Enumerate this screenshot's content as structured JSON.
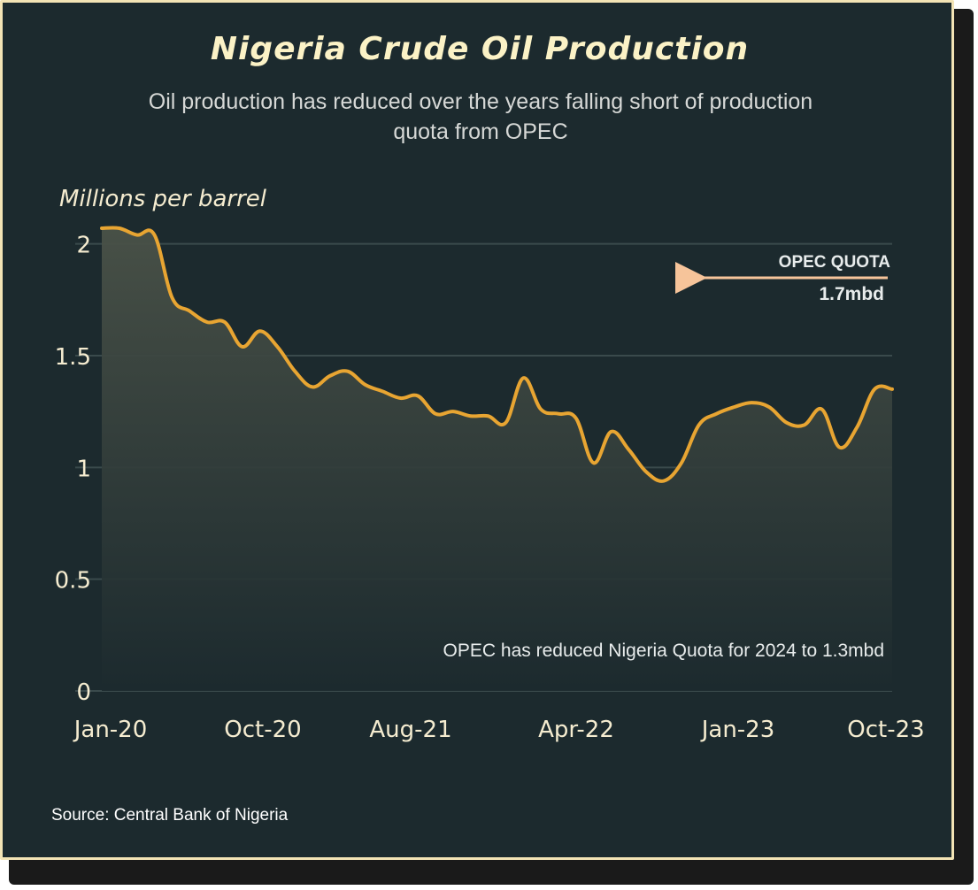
{
  "title": "Nigeria Crude Oil Production",
  "subtitle": "Oil production has reduced over the years falling short of production quota from OPEC",
  "source": "Source: Central Bank of Nigeria",
  "colors": {
    "background": "#1c2a2e",
    "line": "#e8a532",
    "gridline": "#3a4a4c",
    "arrow": "#f6c49a",
    "border": "#f3e4b5"
  },
  "chart_data": {
    "type": "area",
    "ylabel": "Millions per barrel",
    "xlabel": "",
    "ylim": [
      0,
      2.07
    ],
    "yticks": [
      0,
      0.5,
      1,
      1.5,
      2
    ],
    "ytick_labels": [
      "0",
      "0.5",
      "1",
      "1.5",
      "2"
    ],
    "xtick_labels": [
      "Jan-20",
      "Oct-20",
      "Aug-21",
      "Apr-22",
      "Jan-23",
      "Oct-23"
    ],
    "xtick_index": [
      0,
      9,
      19,
      27,
      36,
      45
    ],
    "grid": true,
    "x": [
      "Jan-20",
      "Feb-20",
      "Mar-20",
      "Apr-20",
      "May-20",
      "Jun-20",
      "Jul-20",
      "Aug-20",
      "Sep-20",
      "Oct-20",
      "Nov-20",
      "Dec-20",
      "Jan-21",
      "Feb-21",
      "Mar-21",
      "Apr-21",
      "May-21",
      "Jun-21",
      "Jul-21",
      "Aug-21",
      "Sep-21",
      "Oct-21",
      "Nov-21",
      "Dec-21",
      "Jan-22",
      "Feb-22",
      "Mar-22",
      "Apr-22",
      "May-22",
      "Jun-22",
      "Jul-22",
      "Aug-22",
      "Sep-22",
      "Oct-22",
      "Nov-22",
      "Dec-22",
      "Jan-23",
      "Feb-23",
      "Mar-23",
      "Apr-23",
      "May-23",
      "Jun-23",
      "Jul-23",
      "Aug-23",
      "Sep-23",
      "Oct-23"
    ],
    "values": [
      2.07,
      2.07,
      2.04,
      2.04,
      1.76,
      1.7,
      1.65,
      1.65,
      1.54,
      1.61,
      1.54,
      1.43,
      1.36,
      1.41,
      1.43,
      1.37,
      1.34,
      1.31,
      1.32,
      1.24,
      1.25,
      1.23,
      1.23,
      1.2,
      1.4,
      1.26,
      1.24,
      1.22,
      1.02,
      1.16,
      1.08,
      0.98,
      0.94,
      1.02,
      1.19,
      1.24,
      1.27,
      1.29,
      1.27,
      1.2,
      1.19,
      1.26,
      1.09,
      1.18,
      1.35,
      1.35
    ],
    "annotations": [
      {
        "id": "opec-quota-label",
        "text": "OPEC QUOTA"
      },
      {
        "id": "opec-quota-value",
        "text": "1.7mbd"
      },
      {
        "id": "quota-note",
        "text": "OPEC has reduced Nigeria Quota for 2024 to 1.3mbd"
      }
    ]
  }
}
